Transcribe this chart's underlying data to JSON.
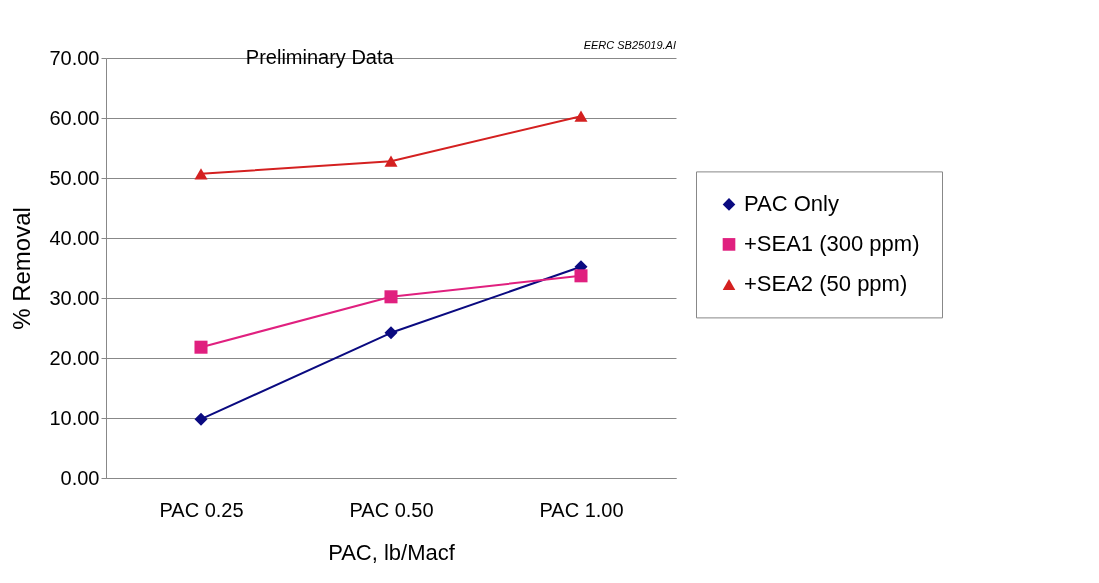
{
  "chart_data": {
    "type": "line",
    "xlabel": "PAC, lb/Macf",
    "ylabel": "% Removal",
    "categories": [
      "PAC 0.25",
      "PAC 0.50",
      "PAC 1.00"
    ],
    "series": [
      {
        "name": "PAC Only",
        "color": "#0a0a80",
        "marker": "diamond",
        "values": [
          9.8,
          24.2,
          35.2
        ]
      },
      {
        "name": "+SEA1 (300 ppm)",
        "color": "#e0207f",
        "marker": "square",
        "values": [
          21.8,
          30.2,
          33.7
        ]
      },
      {
        "name": "+SEA2 (50 ppm)",
        "color": "#d42020",
        "marker": "triangle",
        "values": [
          50.7,
          52.8,
          60.3
        ]
      }
    ],
    "ylim": [
      0,
      70
    ],
    "yticks": [
      {
        "value": 0,
        "label": "0.00"
      },
      {
        "value": 10,
        "label": "10.00"
      },
      {
        "value": 20,
        "label": "20.00"
      },
      {
        "value": 30,
        "label": "30.00"
      },
      {
        "value": 40,
        "label": "40.00"
      },
      {
        "value": 50,
        "label": "50.00"
      },
      {
        "value": 60,
        "label": "60.00"
      },
      {
        "value": 70,
        "label": "70.00"
      }
    ],
    "grid": "y",
    "legend": "right",
    "line_style": "solid",
    "annotations": [
      "Preliminary Data",
      "EERC SB25019.AI"
    ]
  }
}
